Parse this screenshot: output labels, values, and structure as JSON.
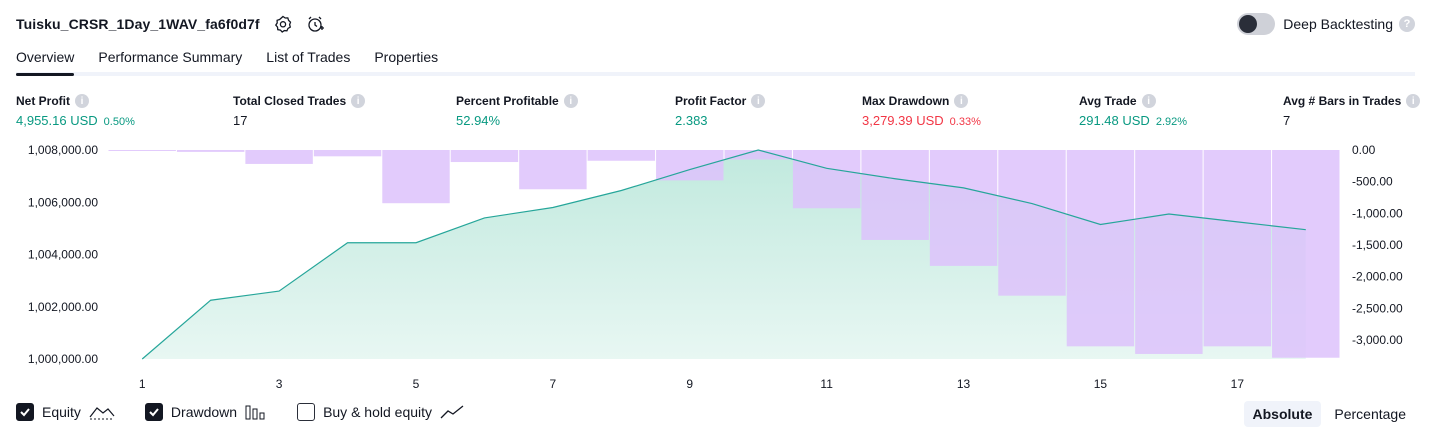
{
  "header": {
    "strategy_name": "Tuisku_CRSR_1Day_1WAV_fa6f0d7f",
    "icons": [
      "settings-icon",
      "add-alert-icon"
    ],
    "deep_backtesting_label": "Deep Backtesting",
    "deep_backtesting_enabled": false
  },
  "tabs": [
    {
      "label": "Overview",
      "active": true
    },
    {
      "label": "Performance Summary",
      "active": false
    },
    {
      "label": "List of Trades",
      "active": false
    },
    {
      "label": "Properties",
      "active": false
    }
  ],
  "metrics": {
    "net_profit": {
      "label": "Net Profit",
      "value": "4,955.16 USD",
      "pct": "0.50%"
    },
    "total_closed_trades": {
      "label": "Total Closed Trades",
      "value": "17"
    },
    "percent_profitable": {
      "label": "Percent Profitable",
      "value": "52.94%"
    },
    "profit_factor": {
      "label": "Profit Factor",
      "value": "2.383"
    },
    "max_drawdown": {
      "label": "Max Drawdown",
      "value": "3,279.39 USD",
      "pct": "0.33%"
    },
    "avg_trade": {
      "label": "Avg Trade",
      "value": "291.48 USD",
      "pct": "2.92%"
    },
    "avg_bars": {
      "label": "Avg # Bars in Trades",
      "value": "7"
    }
  },
  "chart_data": {
    "type": "line",
    "x": [
      1,
      2,
      3,
      4,
      5,
      6,
      7,
      8,
      9,
      10,
      11,
      12,
      13,
      14,
      15,
      16,
      17,
      18
    ],
    "x_tick_labels": [
      "1",
      "3",
      "5",
      "7",
      "9",
      "11",
      "13",
      "15",
      "17"
    ],
    "series": [
      {
        "name": "Equity",
        "axis": "left",
        "values": [
          1000000,
          1002250,
          1002600,
          1004450,
          1004450,
          1005400,
          1005800,
          1006450,
          1007250,
          1008000,
          1007300,
          1006900,
          1006550,
          1005950,
          1005150,
          1005550,
          1005250,
          1004950
        ]
      },
      {
        "name": "Drawdown",
        "axis": "right",
        "style": "bar",
        "values": [
          -10,
          -30,
          -220,
          -100,
          -840,
          -190,
          -620,
          -170,
          -480,
          -150,
          -920,
          -1420,
          -1830,
          -2300,
          -3100,
          -3220,
          -3100,
          -3280
        ]
      }
    ],
    "left_axis": {
      "ticks": [
        "1,000,000.00",
        "1,002,000.00",
        "1,004,000.00",
        "1,006,000.00",
        "1,008,000.00"
      ],
      "range": [
        1000000,
        1008000
      ]
    },
    "right_axis": {
      "ticks": [
        "0.00",
        "-500.00",
        "-1,000.00",
        "-1,500.00",
        "-2,000.00",
        "-2,500.00",
        "-3,000.00"
      ],
      "range": [
        -3300,
        0
      ]
    },
    "colors": {
      "equity_line": "#26a69a",
      "equity_fill": "#bde8dc",
      "drawdown_bar": "#ddc2fb"
    }
  },
  "legend": {
    "items": [
      {
        "label": "Equity",
        "checked": true,
        "icon": "equity-line-icon"
      },
      {
        "label": "Drawdown",
        "checked": true,
        "icon": "bars-icon"
      },
      {
        "label": "Buy & hold equity",
        "checked": false,
        "icon": "trend-line-icon"
      }
    ]
  },
  "mode": {
    "absolute_label": "Absolute",
    "percentage_label": "Percentage",
    "selected": "Absolute"
  }
}
